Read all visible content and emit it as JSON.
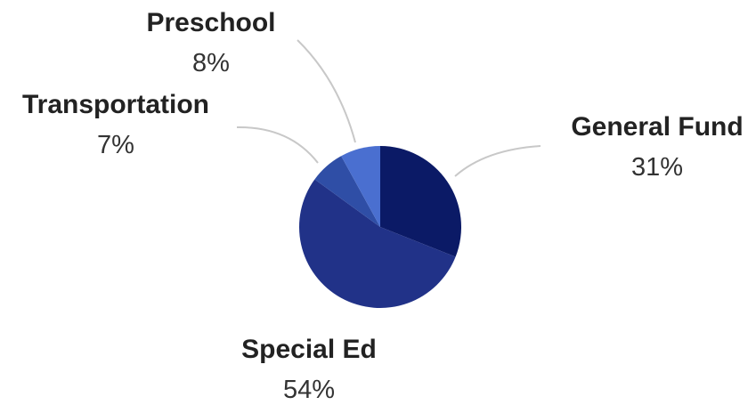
{
  "chart_data": {
    "type": "pie",
    "slices": [
      {
        "label": "General Fund",
        "value": 31,
        "display": "31%",
        "color": "#0b1a66"
      },
      {
        "label": "Special Ed",
        "value": 54,
        "display": "54%",
        "color": "#213288"
      },
      {
        "label": "Transportation",
        "value": 7,
        "display": "7%",
        "color": "#2f4ea6"
      },
      {
        "label": "Preschool",
        "value": 8,
        "display": "8%",
        "color": "#4a6fd0"
      }
    ],
    "start_angle": "12 o'clock",
    "direction": "clockwise",
    "legend": "none",
    "labels": "outside with leader lines"
  }
}
